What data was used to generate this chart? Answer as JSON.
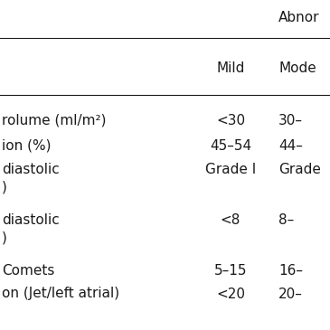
{
  "header_top": "Abnor",
  "col_header_mild": "Mild",
  "col_header_mode": "Mode",
  "rows": [
    [
      "rolume (ml/m²)",
      "<30",
      "30–"
    ],
    [
      "ion (%)",
      "45–54",
      "44–"
    ],
    [
      "diastolic",
      "Grade I",
      "Grade"
    ],
    [
      ")",
      "",
      ""
    ],
    [
      "diastolic",
      "<8",
      "8–"
    ],
    [
      ")",
      "",
      ""
    ],
    [
      "Comets",
      "5–15",
      "16–"
    ],
    [
      "on (Jet/left atrial)",
      "<20",
      "20–"
    ]
  ],
  "background_color": "#ffffff",
  "text_color": "#1a1a1a",
  "fontsize": 11.0
}
